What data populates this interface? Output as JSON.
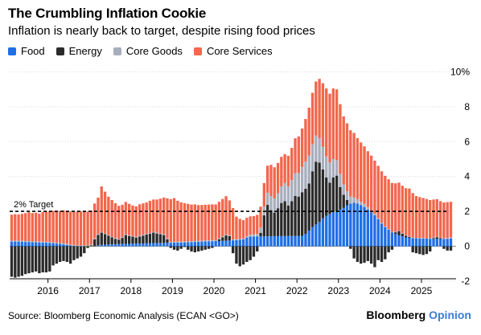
{
  "header": {
    "title": "The Crumbling Inflation Cookie",
    "subtitle": "Inflation is nearly back to target, despite rising food prices"
  },
  "footer": {
    "source": "Source: Bloomberg Economic Analysis (ECAN <GO>)",
    "brand_main": "Bloomberg",
    "brand_accent": "Opinion"
  },
  "chart_data": {
    "type": "bar",
    "stacked": true,
    "title": "The Crumbling Inflation Cookie",
    "subtitle": "Inflation is nearly back to target, despite rising food prices",
    "xlabel": "",
    "ylabel": "",
    "y_unit_label": "10%",
    "ylim": [
      -2,
      10
    ],
    "yticks": [
      10,
      8,
      6,
      4,
      2,
      0,
      -2
    ],
    "yticklabels": [
      "10%",
      "8",
      "6",
      "4",
      "2",
      "0",
      "-2"
    ],
    "x_tick_labels": [
      "2016",
      "2017",
      "2018",
      "2019",
      "2020",
      "2021",
      "2022",
      "2023",
      "2024",
      "2025"
    ],
    "frequency": "monthly",
    "x_start": "2015-02",
    "x_end": "2025-09",
    "grid": true,
    "legend_position": "top-left",
    "target_line": {
      "value": 2,
      "label": "2% Target"
    },
    "series": [
      {
        "name": "Food",
        "color": "#1f6fe5",
        "values": [
          0.27,
          0.27,
          0.27,
          0.26,
          0.25,
          0.25,
          0.24,
          0.23,
          0.22,
          0.22,
          0.21,
          0.2,
          0.18,
          0.16,
          0.14,
          0.11,
          0.08,
          0.05,
          0.02,
          0.0,
          0.0,
          0.0,
          0.0,
          0.0,
          0.0,
          0.05,
          0.08,
          0.09,
          0.1,
          0.11,
          0.12,
          0.13,
          0.13,
          0.14,
          0.14,
          0.15,
          0.15,
          0.16,
          0.16,
          0.17,
          0.17,
          0.18,
          0.18,
          0.19,
          0.19,
          0.2,
          0.2,
          0.21,
          0.21,
          0.22,
          0.22,
          0.23,
          0.24,
          0.25,
          0.26,
          0.27,
          0.28,
          0.28,
          0.29,
          0.3,
          0.3,
          0.31,
          0.32,
          0.33,
          0.34,
          0.35,
          0.37,
          0.4,
          0.5,
          0.56,
          0.56,
          0.56,
          0.57,
          0.57,
          0.57,
          0.57,
          0.58,
          0.58,
          0.58,
          0.58,
          0.59,
          0.59,
          0.59,
          0.6,
          0.6,
          0.7,
          0.9,
          1.1,
          1.25,
          1.4,
          1.6,
          1.75,
          1.85,
          1.95,
          2.0,
          2.1,
          2.2,
          2.35,
          2.45,
          2.5,
          2.45,
          2.35,
          2.25,
          2.1,
          1.95,
          1.78,
          1.55,
          1.3,
          1.1,
          0.95,
          0.8,
          0.7,
          0.62,
          0.57,
          0.5,
          0.48,
          0.47,
          0.46,
          0.45,
          0.45,
          0.44,
          0.43,
          0.42,
          0.42,
          0.41,
          0.42,
          0.43,
          0.44,
          0.45,
          0.46,
          0.47,
          0.49,
          0.52,
          0.54,
          0.57
        ]
      },
      {
        "name": "Energy",
        "color": "#2b2b2b",
        "values": [
          -1.75,
          -1.8,
          -1.75,
          -1.7,
          -1.6,
          -1.55,
          -1.5,
          -1.45,
          -1.55,
          -1.5,
          -1.5,
          -1.45,
          -1.1,
          -1.0,
          -0.9,
          -0.85,
          -0.9,
          -1.0,
          -0.8,
          -0.7,
          -0.6,
          -0.4,
          -0.1,
          0.05,
          0.4,
          0.6,
          0.7,
          0.6,
          0.5,
          0.4,
          0.3,
          0.25,
          0.35,
          0.5,
          0.45,
          0.4,
          0.35,
          0.4,
          0.45,
          0.5,
          0.55,
          0.6,
          0.55,
          0.5,
          0.45,
          0.2,
          -0.1,
          -0.2,
          -0.25,
          -0.15,
          -0.05,
          -0.2,
          -0.3,
          -0.35,
          -0.3,
          -0.25,
          -0.2,
          -0.15,
          -0.1,
          0.0,
          0.1,
          0.2,
          0.3,
          0.25,
          -0.4,
          -1.0,
          -1.15,
          -1.05,
          -0.9,
          -0.8,
          -0.6,
          -0.3,
          0.2,
          1.2,
          1.8,
          1.5,
          1.35,
          1.6,
          1.9,
          2.0,
          1.75,
          2.0,
          2.3,
          2.25,
          2.5,
          2.6,
          2.7,
          3.2,
          3.6,
          3.4,
          2.8,
          2.2,
          1.8,
          2.0,
          2.05,
          1.3,
          0.75,
          0.3,
          -0.15,
          -0.7,
          -0.9,
          -1.0,
          -0.95,
          -0.85,
          -1.0,
          -1.2,
          -0.8,
          -0.9,
          -0.75,
          -0.35,
          -0.2,
          0.1,
          0.25,
          0.15,
          0.1,
          0.05,
          -0.35,
          -0.4,
          -0.45,
          -0.5,
          -0.45,
          -0.3,
          0.05,
          0.1,
          0.05,
          -0.15,
          -0.25,
          -0.25,
          -0.2,
          -0.1,
          0.0,
          0.2,
          0.35,
          0.25,
          -0.05
        ]
      },
      {
        "name": "Core Goods",
        "color": "#a7aebd",
        "values": [
          0.04,
          0.05,
          0.05,
          0.05,
          0.05,
          0.05,
          0.04,
          0.04,
          0.05,
          0.04,
          0.04,
          0.05,
          0.05,
          0.04,
          0.04,
          0.05,
          0.05,
          0.04,
          0.04,
          0.05,
          0.05,
          0.04,
          0.04,
          0.05,
          0.05,
          0.04,
          0.05,
          0.04,
          0.04,
          0.04,
          0.05,
          0.04,
          0.05,
          0.05,
          0.04,
          0.04,
          0.04,
          0.05,
          0.05,
          0.04,
          0.04,
          0.05,
          0.05,
          0.04,
          0.05,
          0.05,
          0.05,
          0.05,
          0.05,
          0.05,
          0.05,
          0.05,
          0.05,
          0.05,
          0.05,
          0.05,
          0.05,
          0.06,
          0.06,
          0.05,
          0.05,
          0.05,
          0.05,
          0.05,
          0.05,
          0.05,
          0.05,
          0.05,
          0.08,
          0.1,
          0.12,
          0.14,
          0.3,
          0.5,
          0.7,
          0.8,
          0.8,
          0.85,
          0.95,
          1.05,
          1.1,
          1.2,
          1.3,
          1.35,
          1.45,
          1.55,
          1.6,
          1.55,
          1.5,
          1.4,
          1.3,
          1.2,
          1.15,
          1.05,
          0.9,
          0.75,
          0.6,
          0.5,
          0.4,
          0.3,
          0.25,
          0.2,
          0.18,
          0.15,
          0.1,
          0.08,
          0.06,
          0.05,
          0.04,
          0.04,
          0.03,
          0.03,
          0.03,
          0.03,
          0.03,
          0.03,
          0.03,
          0.02,
          0.02,
          0.02,
          0.02,
          0.02,
          0.03,
          0.03,
          0.03,
          0.04,
          0.05,
          0.06,
          0.06,
          0.07,
          0.08,
          0.09,
          0.09,
          0.1,
          0.1
        ]
      },
      {
        "name": "Core Services",
        "color": "#f2674d",
        "values": [
          1.5,
          1.52,
          1.5,
          1.55,
          1.6,
          1.65,
          1.62,
          1.65,
          1.6,
          1.7,
          1.75,
          1.75,
          1.8,
          1.8,
          1.85,
          1.9,
          1.9,
          1.9,
          1.9,
          1.95,
          1.95,
          1.95,
          1.95,
          1.95,
          2.0,
          2.1,
          2.6,
          2.4,
          2.2,
          2.1,
          2.0,
          1.9,
          1.85,
          1.85,
          1.8,
          1.75,
          1.75,
          1.8,
          1.8,
          1.8,
          1.85,
          1.85,
          1.9,
          2.0,
          2.1,
          2.3,
          2.45,
          2.5,
          2.35,
          2.25,
          2.2,
          2.15,
          2.1,
          2.1,
          2.05,
          2.05,
          2.05,
          2.05,
          2.05,
          2.05,
          2.1,
          2.15,
          2.2,
          2.0,
          1.8,
          1.3,
          1.15,
          1.05,
          1.05,
          1.05,
          1.05,
          1.1,
          1.2,
          1.35,
          1.55,
          1.8,
          1.8,
          1.75,
          1.7,
          1.65,
          1.75,
          1.85,
          2.0,
          2.1,
          2.2,
          2.45,
          2.75,
          2.95,
          3.1,
          3.4,
          3.65,
          3.9,
          3.95,
          4.05,
          4.05,
          4.0,
          3.9,
          3.9,
          3.8,
          3.7,
          3.5,
          3.4,
          3.3,
          3.2,
          3.15,
          3.05,
          3.0,
          2.95,
          2.9,
          2.85,
          2.8,
          2.78,
          2.75,
          2.72,
          2.7,
          2.75,
          2.55,
          2.4,
          2.35,
          2.3,
          2.25,
          2.2,
          2.18,
          2.15,
          2.1,
          2.05,
          2.05,
          2.05,
          2.05,
          2.05,
          2.05,
          2.0,
          2.0,
          1.95,
          1.9
        ]
      }
    ]
  }
}
